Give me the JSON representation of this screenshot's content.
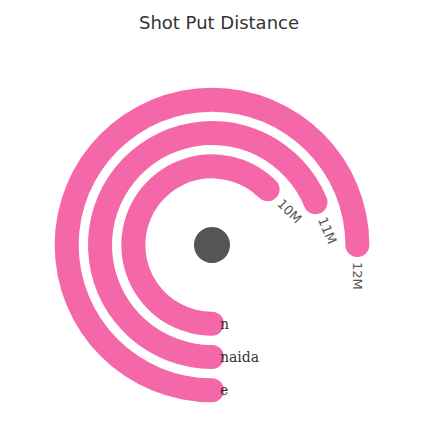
{
  "chart_data": {
    "type": "polar_bar",
    "title": "Shot Put Distance",
    "categories": [
      "n",
      "naida",
      "e"
    ],
    "values": [
      10,
      11,
      12
    ],
    "value_labels": [
      "10M",
      "11M",
      "12M"
    ],
    "data_labels": true,
    "color": "#f467a9",
    "xlim": [
      0,
      16
    ],
    "tick_labels": "y"
  }
}
